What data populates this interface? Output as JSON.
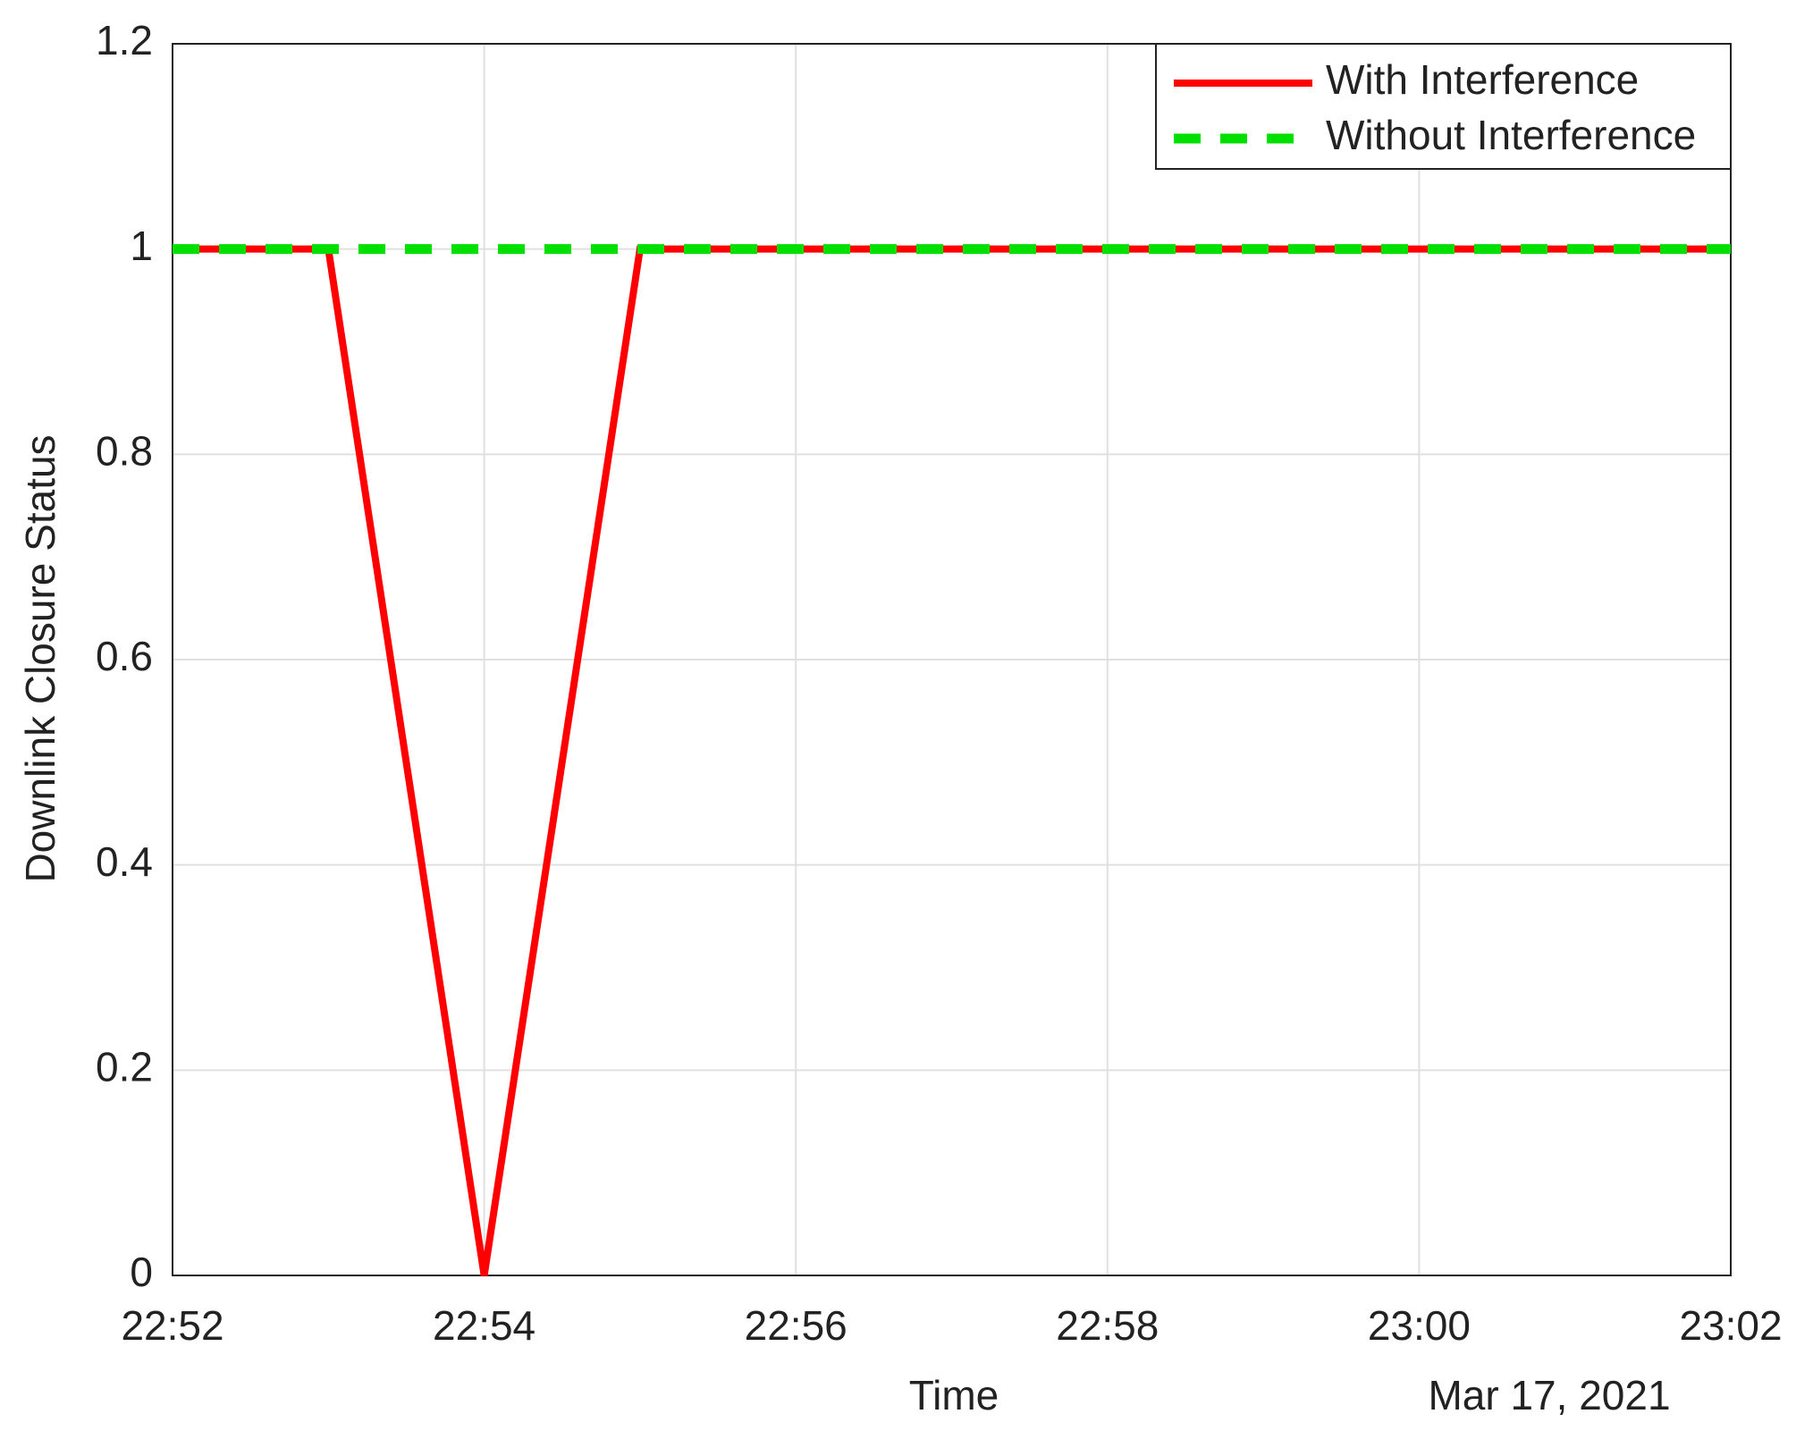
{
  "chart_data": {
    "type": "line",
    "xlabel": "Time",
    "ylabel": "Downlink Closure Status",
    "x_date_label": "Mar 17, 2021",
    "x": [
      "22:52",
      "22:53",
      "22:54",
      "22:55",
      "23:02"
    ],
    "series": [
      {
        "name": "With Interference",
        "color": "#ff0000",
        "dash": false,
        "values": [
          1,
          1,
          0,
          1,
          1
        ]
      },
      {
        "name": "Without Interference",
        "color": "#00e000",
        "dash": true,
        "values": [
          1,
          1,
          1,
          1,
          1
        ]
      }
    ],
    "xlim": [
      "22:52",
      "23:02"
    ],
    "xticks": [
      "22:52",
      "22:54",
      "22:56",
      "22:58",
      "23:00",
      "23:02"
    ],
    "ylim": [
      0,
      1.2
    ],
    "yticks": [
      0,
      0.2,
      0.4,
      0.6,
      0.8,
      1,
      1.2
    ],
    "grid": true,
    "legend": "upper right"
  }
}
